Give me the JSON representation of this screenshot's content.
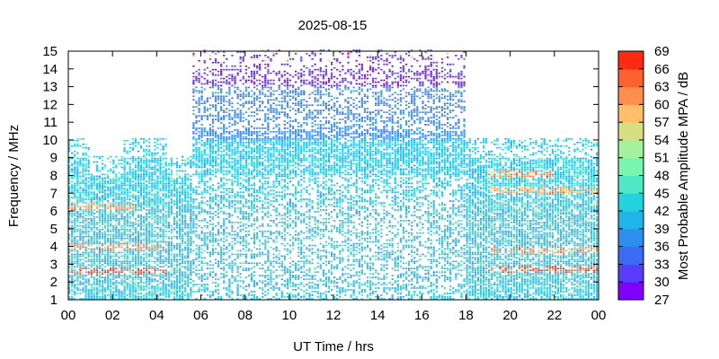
{
  "chart_data": {
    "type": "heatmap",
    "title": "2025-08-15",
    "xlabel": "UT Time / hrs",
    "ylabel": "Frequency / MHz",
    "colorbar_label": "Most Probable Amplitude MPA / dB",
    "xlim": [
      0,
      24
    ],
    "ylim": [
      1,
      15
    ],
    "x_tick_labels": [
      "00",
      "02",
      "04",
      "06",
      "08",
      "10",
      "12",
      "14",
      "16",
      "18",
      "20",
      "22",
      "00"
    ],
    "y_tick_labels": [
      "1",
      "2",
      "3",
      "4",
      "5",
      "6",
      "7",
      "8",
      "9",
      "10",
      "11",
      "12",
      "13",
      "14",
      "15"
    ],
    "colorbar_range": [
      27,
      69
    ],
    "colorbar_ticks": [
      "27",
      "30",
      "33",
      "36",
      "39",
      "42",
      "45",
      "48",
      "51",
      "54",
      "57",
      "60",
      "63",
      "66",
      "69"
    ],
    "colorbar_colors": [
      "#7f00ff",
      "#5a3cff",
      "#3a6cf5",
      "#2c8ff0",
      "#1fb5e8",
      "#22d3dd",
      "#4de8c6",
      "#7af5b0",
      "#a4f39c",
      "#d6e080",
      "#ffbf6a",
      "#ff8f4a",
      "#ff6030",
      "#ff2a10"
    ],
    "grid": false,
    "upper_frequency_limit_by_time": [
      {
        "x": [
          0,
          1
        ],
        "f_max": 10
      },
      {
        "x": [
          1,
          2.5
        ],
        "f_max": 9
      },
      {
        "x": [
          2.5,
          4.5
        ],
        "f_max": 10
      },
      {
        "x": [
          4.5,
          5.6
        ],
        "f_max": 9
      },
      {
        "x": [
          5.6,
          18
        ],
        "f_max": 15
      },
      {
        "x": [
          18,
          19
        ],
        "f_max": 10
      },
      {
        "x": [
          19,
          24
        ],
        "f_max": 10
      }
    ],
    "high_amplitude_bands": [
      {
        "x": [
          0,
          4.5
        ],
        "f": 2.6,
        "dB": 66
      },
      {
        "x": [
          0,
          4.5
        ],
        "f": 4.0,
        "dB": 62
      },
      {
        "x": [
          0,
          3
        ],
        "f": 6.3,
        "dB": 60
      },
      {
        "x": [
          19,
          24
        ],
        "f": 2.7,
        "dB": 66
      },
      {
        "x": [
          19,
          24
        ],
        "f": 3.8,
        "dB": 62
      },
      {
        "x": [
          19,
          24
        ],
        "f": 7.2,
        "dB": 60
      },
      {
        "x": [
          19,
          22
        ],
        "f": 8.1,
        "dB": 62
      }
    ],
    "low_amplitude_region": {
      "x": [
        5.6,
        18
      ],
      "f": [
        13,
        15
      ],
      "dB": 30
    }
  }
}
